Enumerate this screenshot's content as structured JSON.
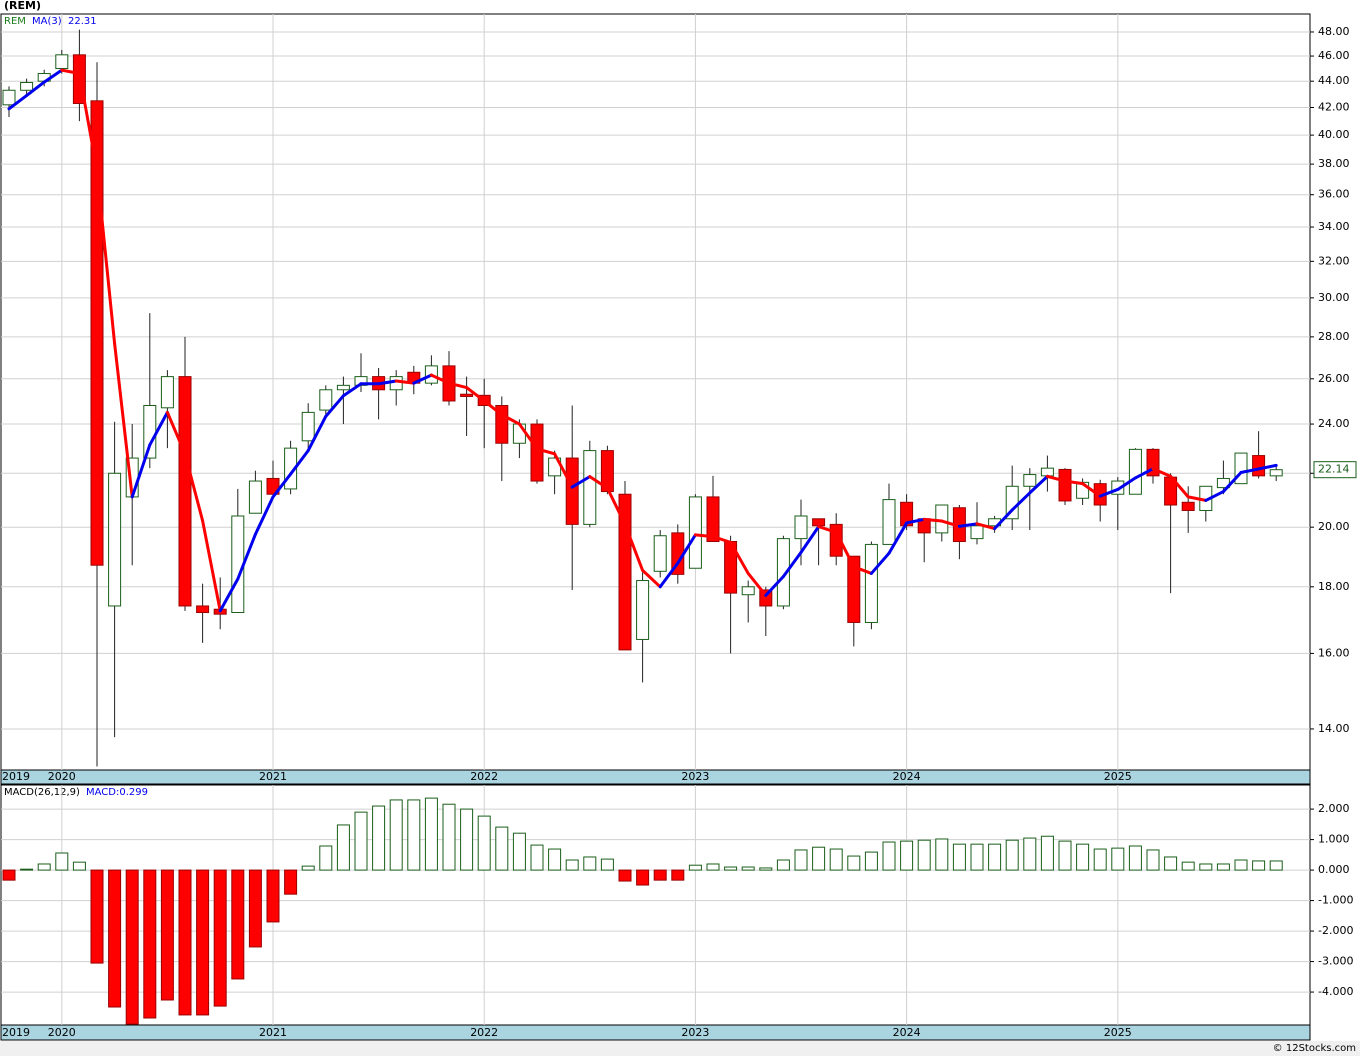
{
  "source": "© 12Stocks.com",
  "chart_data": [
    {
      "type": "candlestick",
      "title": "(REM)",
      "symbol": "REM",
      "ylog": true,
      "grid": true,
      "categories": [
        "2019",
        null,
        null,
        "2020",
        null,
        null,
        null,
        null,
        null,
        null,
        null,
        null,
        null,
        null,
        null,
        "2021",
        null,
        null,
        null,
        null,
        null,
        null,
        null,
        null,
        null,
        null,
        null,
        "2022",
        null,
        null,
        null,
        null,
        null,
        null,
        null,
        null,
        null,
        null,
        null,
        "2023",
        null,
        null,
        null,
        null,
        null,
        null,
        null,
        null,
        null,
        null,
        null,
        "2024",
        null,
        null,
        null,
        null,
        null,
        null,
        null,
        null,
        null,
        null,
        null,
        "2025",
        null,
        null,
        null,
        null,
        null,
        null,
        null,
        null,
        null
      ],
      "open": [
        42.2,
        43.3,
        44.0,
        45.0,
        46.1,
        42.5,
        17.4,
        21.1,
        22.6,
        24.7,
        26.1,
        17.4,
        17.3,
        17.2,
        20.5,
        21.8,
        21.4,
        23.3,
        24.6,
        25.5,
        25.7,
        26.1,
        25.5,
        26.3,
        25.8,
        26.6,
        25.3,
        25.25,
        24.8,
        23.2,
        24.0,
        21.9,
        22.6,
        20.1,
        22.9,
        21.2,
        16.4,
        18.5,
        19.8,
        18.6,
        21.1,
        19.5,
        17.75,
        17.9,
        17.4,
        19.6,
        20.3,
        20.1,
        19.0,
        16.9,
        19.4,
        20.9,
        20.3,
        19.8,
        20.7,
        19.6,
        20.05,
        20.3,
        21.5,
        21.9,
        22.15,
        21.05,
        21.6,
        21.2,
        21.2,
        22.95,
        21.85,
        20.9,
        20.6,
        21.45,
        21.6,
        22.7,
        21.9
      ],
      "high": [
        43.6,
        44.2,
        44.9,
        46.5,
        48.2,
        45.5,
        24.1,
        24.0,
        29.2,
        26.4,
        28.0,
        18.1,
        18.3,
        21.4,
        22.1,
        22.5,
        23.3,
        24.9,
        25.7,
        26.1,
        27.2,
        26.5,
        26.4,
        26.6,
        27.1,
        27.3,
        26.1,
        26.0,
        25.2,
        24.2,
        24.2,
        22.9,
        24.8,
        23.3,
        23.1,
        21.7,
        18.6,
        19.9,
        20.1,
        21.2,
        21.9,
        19.7,
        18.2,
        18.0,
        19.7,
        21.0,
        20.3,
        20.5,
        19.0,
        19.5,
        21.6,
        21.2,
        20.3,
        20.8,
        20.8,
        20.9,
        20.4,
        22.3,
        22.2,
        22.7,
        22.2,
        21.8,
        21.75,
        21.85,
        23.0,
        23.0,
        22.0,
        21.5,
        21.5,
        22.5,
        22.8,
        23.7,
        22.3
      ],
      "low": [
        41.3,
        43.0,
        43.6,
        44.6,
        41.0,
        13.1,
        13.8,
        18.7,
        22.2,
        23.0,
        17.25,
        16.3,
        16.7,
        17.2,
        20.5,
        21.0,
        21.2,
        23.0,
        24.4,
        24.0,
        25.4,
        24.2,
        24.8,
        25.3,
        25.7,
        24.8,
        23.5,
        23.0,
        21.7,
        22.6,
        21.6,
        21.2,
        17.9,
        20.0,
        21.2,
        16.1,
        15.2,
        18.3,
        18.1,
        18.6,
        19.5,
        16.0,
        16.9,
        16.5,
        17.3,
        18.7,
        18.7,
        18.7,
        16.2,
        16.7,
        19.4,
        19.9,
        18.8,
        19.5,
        18.9,
        19.4,
        19.8,
        19.9,
        19.9,
        21.3,
        20.8,
        20.8,
        20.2,
        19.9,
        21.2,
        21.6,
        17.8,
        19.8,
        20.2,
        21.2,
        21.6,
        21.8,
        21.7
      ],
      "close": [
        43.3,
        43.9,
        44.6,
        46.1,
        42.3,
        18.7,
        22.0,
        22.6,
        24.8,
        26.1,
        17.4,
        17.2,
        17.15,
        20.4,
        21.7,
        21.2,
        23.0,
        24.5,
        25.5,
        25.7,
        26.1,
        25.5,
        26.1,
        25.8,
        26.6,
        25.0,
        25.2,
        24.8,
        23.2,
        24.0,
        21.7,
        22.6,
        20.1,
        22.9,
        21.3,
        16.1,
        18.2,
        19.7,
        18.4,
        21.1,
        19.5,
        17.8,
        18.0,
        17.4,
        19.6,
        20.4,
        20.05,
        19.0,
        16.9,
        19.4,
        21.0,
        20.05,
        19.8,
        20.8,
        19.5,
        20.05,
        20.3,
        21.5,
        21.95,
        22.2,
        20.95,
        21.65,
        20.8,
        21.7,
        22.95,
        21.9,
        20.8,
        20.6,
        21.5,
        21.8,
        22.8,
        21.9,
        22.14
      ],
      "up_color": "#ffffff",
      "up_border": "#1a5e1a",
      "down_color": "#ff0000",
      "down_border": "#9b0000",
      "series": [
        {
          "name": "MA(3)",
          "up_color": "#0000ee",
          "down_color": "#ff0000",
          "values": [
            41.9,
            42.9,
            43.93,
            44.87,
            44.6,
            37.6,
            27.67,
            21.1,
            23.13,
            24.5,
            22.77,
            20.23,
            17.25,
            18.25,
            19.75,
            21.1,
            21.97,
            22.9,
            24.33,
            25.23,
            25.77,
            25.77,
            25.9,
            25.8,
            26.17,
            25.8,
            25.6,
            25.0,
            24.4,
            24.0,
            22.97,
            22.77,
            21.47,
            21.87,
            21.43,
            20.1,
            18.53,
            18.0,
            18.77,
            19.73,
            19.67,
            19.47,
            18.43,
            17.73,
            18.33,
            19.13,
            20.02,
            19.82,
            18.65,
            18.43,
            19.1,
            20.15,
            20.28,
            20.22,
            20.03,
            20.12,
            19.95,
            20.62,
            21.25,
            21.88,
            21.7,
            21.6,
            21.13,
            21.38,
            21.82,
            22.18,
            21.88,
            21.1,
            20.97,
            21.3,
            22.03,
            22.17,
            22.31
          ]
        }
      ],
      "ylim": [
        13.02,
        49.55
      ],
      "yticks": [
        {
          "value": 14,
          "label": "14.00"
        },
        {
          "value": 16,
          "label": "16.00"
        },
        {
          "value": 18,
          "label": "18.00"
        },
        {
          "value": 20,
          "label": "20.00"
        },
        {
          "value": 22,
          "label": "22.00"
        },
        {
          "value": 24,
          "label": "24.00"
        },
        {
          "value": 26,
          "label": "26.00"
        },
        {
          "value": 28,
          "label": "28.00"
        },
        {
          "value": 30,
          "label": "30.00"
        },
        {
          "value": 32,
          "label": "32.00"
        },
        {
          "value": 34,
          "label": "34.00"
        },
        {
          "value": 36,
          "label": "36.00"
        },
        {
          "value": 38,
          "label": "38.00"
        },
        {
          "value": 40,
          "label": "40.00"
        },
        {
          "value": 42,
          "label": "42.00"
        },
        {
          "value": 44,
          "label": "44.00"
        },
        {
          "value": 46,
          "label": "46.00"
        },
        {
          "value": 48,
          "label": "48.00"
        }
      ]
    },
    {
      "type": "bar",
      "title": "MACD(26,12,9)",
      "legend_text": "MACD:0.299",
      "grid": true,
      "values": [
        -0.33,
        0.03,
        0.2,
        0.56,
        0.26,
        -3.05,
        -4.49,
        -5.05,
        -4.85,
        -4.26,
        -4.75,
        -4.75,
        -4.46,
        -3.57,
        -2.52,
        -1.7,
        -0.79,
        0.13,
        0.79,
        1.48,
        1.9,
        2.1,
        2.3,
        2.3,
        2.36,
        2.16,
        2.0,
        1.77,
        1.41,
        1.21,
        0.82,
        0.69,
        0.33,
        0.43,
        0.36,
        -0.36,
        -0.49,
        -0.33,
        -0.33,
        0.16,
        0.2,
        0.1,
        0.1,
        0.07,
        0.33,
        0.66,
        0.75,
        0.69,
        0.46,
        0.59,
        0.92,
        0.95,
        0.98,
        1.02,
        0.85,
        0.85,
        0.85,
        0.98,
        1.05,
        1.11,
        0.95,
        0.85,
        0.69,
        0.72,
        0.79,
        0.66,
        0.43,
        0.26,
        0.2,
        0.2,
        0.33,
        0.3,
        0.299
      ],
      "pos_color": "#ffffff",
      "pos_border": "#1a5e1a",
      "neg_color": "#ff0000",
      "neg_border": "#9b0000",
      "ylim": [
        -5.08,
        2.79
      ],
      "yticks": [
        {
          "value": 2,
          "label": "2.000"
        },
        {
          "value": 1,
          "label": "1.000"
        },
        {
          "value": 0,
          "label": "0.000"
        },
        {
          "value": -1,
          "label": "-1.000"
        },
        {
          "value": -2,
          "label": "-2.000"
        },
        {
          "value": -3,
          "label": "-3.000"
        },
        {
          "value": -4,
          "label": "-4.000"
        }
      ]
    }
  ]
}
